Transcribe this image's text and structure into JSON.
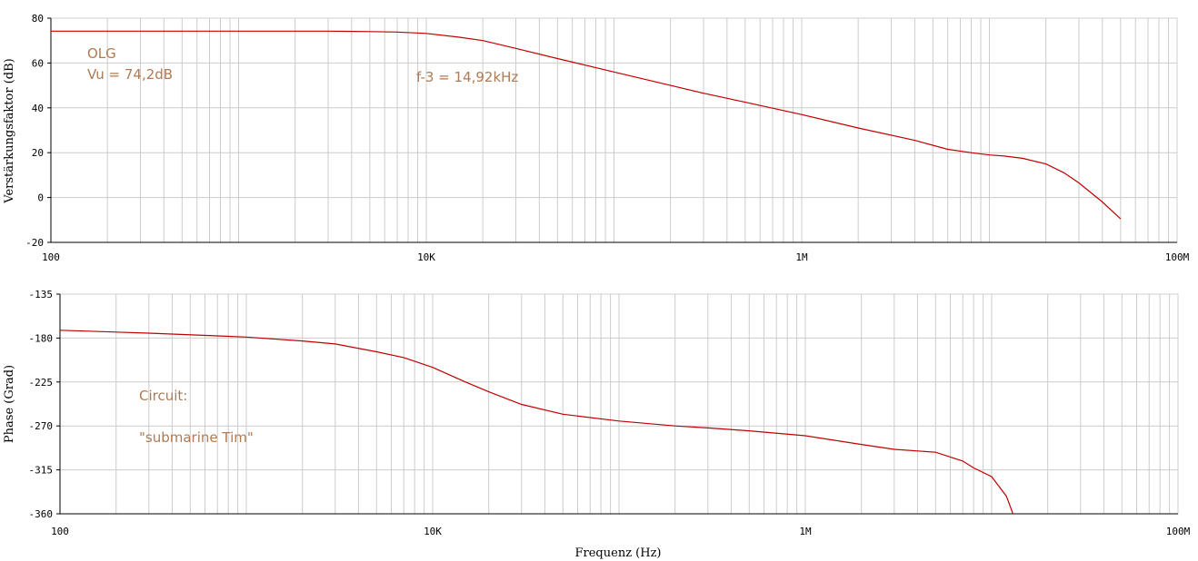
{
  "chart_data": [
    {
      "type": "line",
      "ylabel": "Verstärkungsfaktor (dB)",
      "xlabel": "",
      "x_scale": "log",
      "xlim": [
        100,
        100000000
      ],
      "ylim": [
        -20,
        80
      ],
      "x_tick_values": [
        100,
        10000,
        1000000,
        100000000
      ],
      "x_tick_labels": [
        "100",
        "10K",
        "1M",
        "100M"
      ],
      "y_ticks": [
        -20,
        0,
        20,
        40,
        60,
        80
      ],
      "grid": true,
      "series": [
        {
          "color": "#c00000",
          "x": [
            100,
            1000,
            3000,
            5000,
            7000,
            10000,
            15000,
            20000,
            30000,
            50000,
            100000,
            200000,
            300000,
            500000,
            1000000,
            2000000,
            4000000,
            6000000,
            8000000,
            10000000,
            12000000,
            15000000,
            20000000,
            25000000,
            30000000,
            40000000,
            50000000
          ],
          "y": [
            74.2,
            74.2,
            74.2,
            74.0,
            73.8,
            73.2,
            71.5,
            70.0,
            66.5,
            62.0,
            56.0,
            50.0,
            46.5,
            42.5,
            37.0,
            31.0,
            25.5,
            21.5,
            20.0,
            19.0,
            18.5,
            17.5,
            15.0,
            11.0,
            6.5,
            -2.0,
            -9.5
          ]
        }
      ],
      "annotations": [
        "OLG",
        "Vu = 74,2dB",
        "f-3 = 14,92kHz"
      ]
    },
    {
      "type": "line",
      "ylabel": "Phase (Grad)",
      "xlabel": "Frequenz (Hz)",
      "x_scale": "log",
      "xlim": [
        100,
        100000000
      ],
      "ylim": [
        -360,
        -135
      ],
      "x_tick_values": [
        100,
        10000,
        1000000,
        100000000
      ],
      "x_tick_labels": [
        "100",
        "10K",
        "1M",
        "100M"
      ],
      "y_ticks": [
        -360,
        -315,
        -270,
        -225,
        -180,
        -135
      ],
      "grid": true,
      "series": [
        {
          "color": "#c00000",
          "x": [
            100,
            300,
            1000,
            2000,
            3000,
            5000,
            7000,
            10000,
            15000,
            20000,
            30000,
            50000,
            100000,
            200000,
            300000,
            500000,
            1000000,
            2000000,
            3000000,
            5000000,
            7000000,
            8000000,
            10000000,
            12000000,
            13000000
          ],
          "y": [
            -172,
            -175,
            -179,
            -183,
            -186,
            -194,
            -200,
            -210,
            -225,
            -235,
            -248,
            -258,
            -265,
            -270,
            -272,
            -275,
            -280,
            -289,
            -294,
            -297,
            -306,
            -313,
            -322,
            -342,
            -360
          ]
        }
      ],
      "annotations": [
        "Circuit:",
        "\"submarine Tim\""
      ]
    }
  ]
}
